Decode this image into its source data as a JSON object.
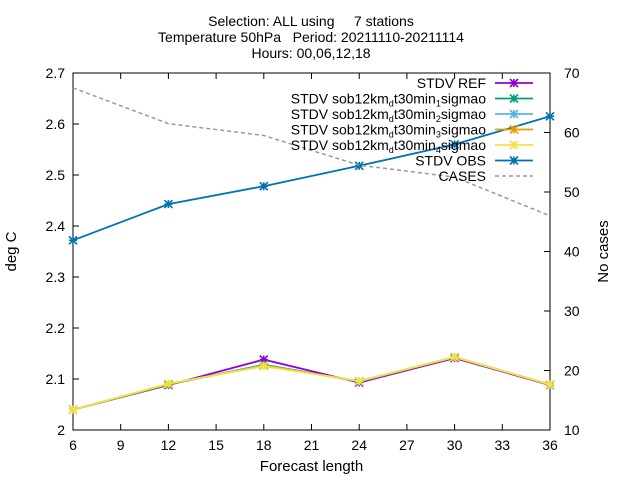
{
  "chart_data": {
    "type": "line",
    "title_lines": [
      "Selection: ALL using     7 stations",
      "Temperature 50hPa   Period: 20211110-20211114",
      "Hours: 00,06,12,18"
    ],
    "xlabel": "Forecast length",
    "ylabel": "deg C",
    "y2label": "No cases",
    "x": [
      6,
      12,
      18,
      24,
      30,
      36
    ],
    "xticks": [
      "6",
      "9",
      "12",
      "15",
      "18",
      "21",
      "24",
      "27",
      "30",
      "33",
      "36"
    ],
    "xlim": [
      6,
      36
    ],
    "ylim": [
      2.0,
      2.7
    ],
    "yticks": [
      "2",
      "2.1",
      "2.2",
      "2.3",
      "2.4",
      "2.5",
      "2.6",
      "2.7"
    ],
    "y2lim": [
      10,
      70
    ],
    "y2ticks": [
      "10",
      "20",
      "30",
      "40",
      "50",
      "60",
      "70"
    ],
    "grid": false,
    "legend_position": "top-right",
    "series": [
      {
        "name": "STDV REF",
        "legend_main": "STDV REF",
        "legend_sub": "",
        "legend_tail": "",
        "color": "#9400d3",
        "axis": "y",
        "dash": false,
        "values": [
          2.04,
          2.088,
          2.138,
          2.093,
          2.141,
          2.088
        ]
      },
      {
        "name": "STDV sob12km_dt30min_1sigmao",
        "legend_main": "STDV sob12km",
        "legend_sub": "d",
        "legend_tail": "t30min",
        "legend_sub2": "1",
        "legend_tail2": "sigmao",
        "color": "#009e73",
        "axis": "y",
        "dash": false,
        "values": [
          2.04,
          2.089,
          2.128,
          2.095,
          2.143,
          2.089
        ]
      },
      {
        "name": "STDV sob12km_dt30min_2sigmao",
        "legend_main": "STDV sob12km",
        "legend_sub": "d",
        "legend_tail": "t30min",
        "legend_sub2": "2",
        "legend_tail2": "sigmao",
        "color": "#56b4e9",
        "axis": "y",
        "dash": false,
        "values": [
          2.04,
          2.09,
          2.127,
          2.095,
          2.143,
          2.089
        ]
      },
      {
        "name": "STDV sob12km_dt30min_3sigmao",
        "legend_main": "STDV sob12km",
        "legend_sub": "d",
        "legend_tail": "t30min",
        "legend_sub2": "3",
        "legend_tail2": "sigmao",
        "color": "#e69f00",
        "axis": "y",
        "dash": false,
        "values": [
          2.04,
          2.09,
          2.126,
          2.096,
          2.143,
          2.089
        ]
      },
      {
        "name": "STDV sob12km_dt30min_4sigmao",
        "legend_main": "STDV sob12km",
        "legend_sub": "d",
        "legend_tail": "t30min",
        "legend_sub2": "4",
        "legend_tail2": "sigmao",
        "color": "#f0e442",
        "axis": "y",
        "dash": false,
        "values": [
          2.04,
          2.091,
          2.125,
          2.096,
          2.143,
          2.089
        ]
      },
      {
        "name": "STDV OBS",
        "legend_main": "STDV OBS",
        "legend_sub": "",
        "legend_tail": "",
        "color": "#0072b2",
        "axis": "y",
        "dash": false,
        "values": [
          2.372,
          2.443,
          2.478,
          2.518,
          2.56,
          2.615
        ]
      },
      {
        "name": "CASES",
        "legend_main": "CASES",
        "legend_sub": "",
        "legend_tail": "",
        "color": "#999999",
        "axis": "y2",
        "dash": true,
        "values": [
          67.5,
          61.5,
          59.5,
          54.5,
          52.5,
          46
        ]
      }
    ]
  }
}
